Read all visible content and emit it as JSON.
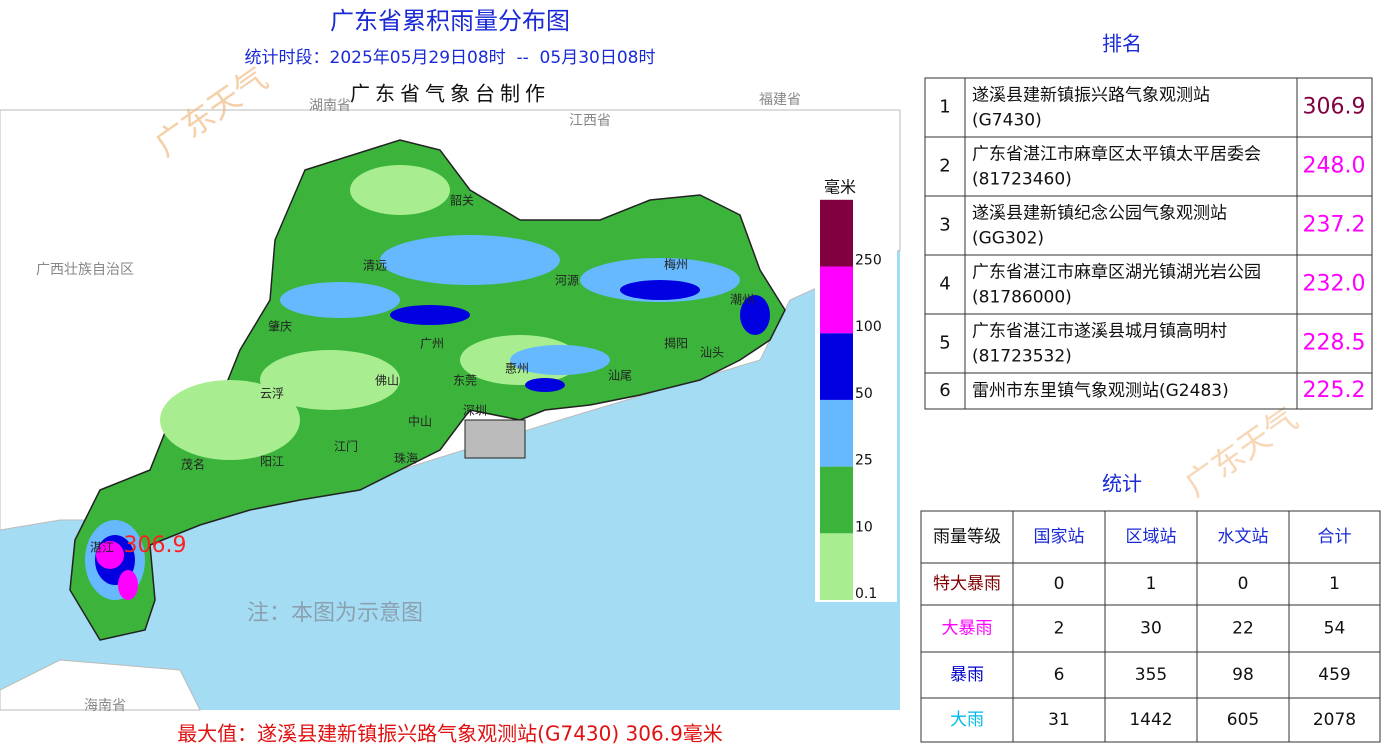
{
  "header": {
    "title": "广东省累积雨量分布图",
    "period": "统计时段：2025年05月29日08时  --  05月30日08时",
    "producer": "广东省气象台制作"
  },
  "map": {
    "regions": [
      "广西壮族自治区",
      "江西省",
      "湖南省",
      "福建省",
      "海南省"
    ],
    "cities": [
      "韶关",
      "清远",
      "河源",
      "梅州",
      "潮州",
      "肇庆",
      "广州",
      "揭阳",
      "汕头",
      "云浮",
      "佛山",
      "东莞",
      "惠州",
      "汕尾",
      "深圳",
      "中山",
      "茂名",
      "阳江",
      "江门",
      "珠海",
      "湛江"
    ],
    "max_label": "306.9",
    "note": "注：本图为示意图",
    "watermark": "广东天气"
  },
  "legend": {
    "unit": "毫米",
    "levels": [
      0.1,
      10,
      25,
      50,
      100,
      250
    ]
  },
  "ranking": {
    "title": "排名",
    "rows": [
      {
        "rank": 1,
        "station": "遂溪县建新镇振兴路气象观测站",
        "code": "(G7430)",
        "value": "306.9"
      },
      {
        "rank": 2,
        "station": "广东省湛江市麻章区太平镇太平居委会",
        "code": "(81723460)",
        "value": "248.0"
      },
      {
        "rank": 3,
        "station": "遂溪县建新镇纪念公园气象观测站",
        "code": "(GG302)",
        "value": "237.2"
      },
      {
        "rank": 4,
        "station": "广东省湛江市麻章区湖光镇湖光岩公园",
        "code": "(81786000)",
        "value": "232.0"
      },
      {
        "rank": 5,
        "station": "广东省湛江市遂溪县城月镇高明村",
        "code": "(81723532)",
        "value": "228.5"
      },
      {
        "rank": 6,
        "station": "雷州市东里镇气象观测站",
        "code": "(G2483)",
        "value": "225.2"
      }
    ]
  },
  "statistics": {
    "title": "统计",
    "headers": [
      "雨量等级",
      "国家站",
      "区域站",
      "水文站",
      "合计"
    ],
    "rows": [
      [
        "特大暴雨",
        0,
        1,
        0,
        1
      ],
      [
        "大暴雨",
        2,
        30,
        22,
        54
      ],
      [
        "暴雨",
        6,
        355,
        98,
        459
      ],
      [
        "大雨",
        31,
        1442,
        605,
        2078
      ]
    ]
  },
  "footer": {
    "max_value": "最大值：遂溪县建新镇振兴路气象观测站(G7430) 306.9毫米"
  }
}
